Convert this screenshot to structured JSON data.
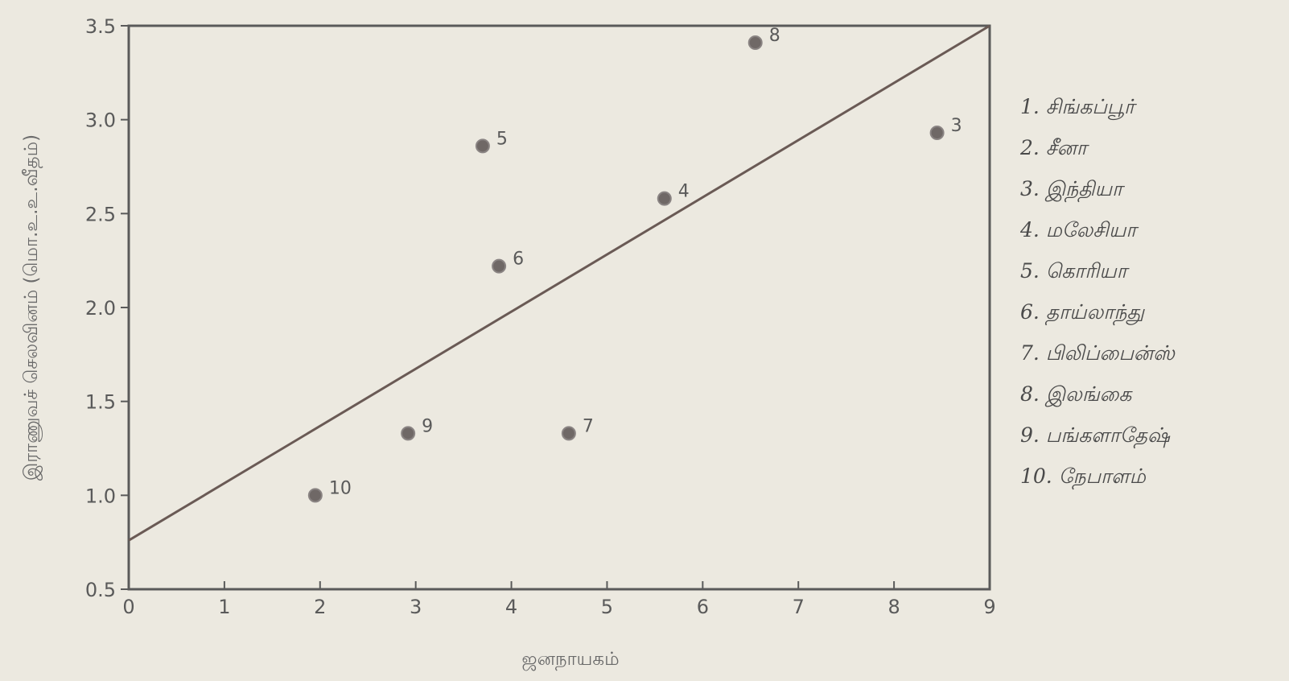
{
  "chart_data": {
    "type": "scatter",
    "title": "",
    "xlabel": "ஜனநாயகம்",
    "ylabel": "இராணுவச் செலவினம் (மொ.உ.உ.வீதம்)",
    "xlim": [
      0,
      9
    ],
    "ylim": [
      0.5,
      3.5
    ],
    "x_ticks": [
      "0",
      "1",
      "2",
      "3",
      "4",
      "5",
      "6",
      "7",
      "8",
      "9"
    ],
    "y_ticks": [
      "0.5",
      "1.0",
      "1.5",
      "2.0",
      "2.5",
      "3.0",
      "3.5"
    ],
    "grid": false,
    "points": [
      {
        "label": "3",
        "x": 8.45,
        "y": 2.93
      },
      {
        "label": "4",
        "x": 5.6,
        "y": 2.58
      },
      {
        "label": "5",
        "x": 3.7,
        "y": 2.86
      },
      {
        "label": "6",
        "x": 3.87,
        "y": 2.22
      },
      {
        "label": "7",
        "x": 4.6,
        "y": 1.33
      },
      {
        "label": "8",
        "x": 6.55,
        "y": 3.41
      },
      {
        "label": "9",
        "x": 2.92,
        "y": 1.33
      },
      {
        "label": "10",
        "x": 1.95,
        "y": 1.0
      }
    ],
    "trendline": {
      "x": [
        0,
        9
      ],
      "y": [
        0.76,
        3.5
      ]
    },
    "legend_position": "right",
    "legend": [
      "1. சிங்கப்பூர்",
      "2. சீனா",
      "3. இந்தியா",
      "4. மலேசியா",
      "5. கொரியா",
      "6. தாய்லாந்து",
      "7. பிலிப்பைன்ஸ்",
      "8. இலங்கை",
      "9. பங்களாதேஷ்",
      "10. நேபாளம்"
    ]
  }
}
